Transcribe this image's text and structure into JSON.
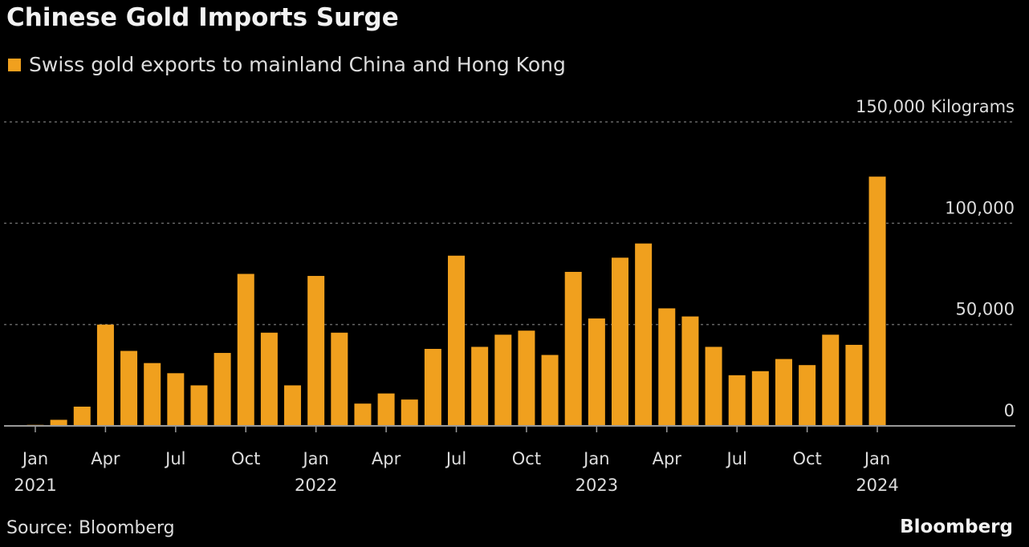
{
  "chart_data": {
    "type": "bar",
    "title": "Chinese Gold Imports Surge",
    "legend": [
      {
        "name": "Swiss gold exports to mainland China and Hong Kong",
        "color": "#f0a01e"
      }
    ],
    "unit_label": "Kilograms",
    "categories": [
      "Jan 2021",
      "Feb 2021",
      "Mar 2021",
      "Apr 2021",
      "May 2021",
      "Jun 2021",
      "Jul 2021",
      "Aug 2021",
      "Sep 2021",
      "Oct 2021",
      "Nov 2021",
      "Dec 2021",
      "Jan 2022",
      "Feb 2022",
      "Mar 2022",
      "Apr 2022",
      "May 2022",
      "Jun 2022",
      "Jul 2022",
      "Aug 2022",
      "Sep 2022",
      "Oct 2022",
      "Nov 2022",
      "Dec 2022",
      "Jan 2023",
      "Feb 2023",
      "Mar 2023",
      "Apr 2023",
      "May 2023",
      "Jun 2023",
      "Jul 2023",
      "Aug 2023",
      "Sep 2023",
      "Oct 2023",
      "Nov 2023",
      "Dec 2023",
      "Jan 2024"
    ],
    "series": [
      {
        "name": "Swiss gold exports to mainland China and Hong Kong",
        "values": [
          500,
          3000,
          9500,
          50000,
          37000,
          31000,
          26000,
          20000,
          36000,
          75000,
          46000,
          20000,
          74000,
          46000,
          11000,
          16000,
          13000,
          38000,
          84000,
          39000,
          45000,
          47000,
          35000,
          76000,
          53000,
          83000,
          90000,
          58000,
          54000,
          39000,
          25000,
          27000,
          33000,
          30000,
          45000,
          40000,
          123000
        ]
      }
    ],
    "ylim": [
      0,
      150000
    ],
    "yticks": [
      0,
      50000,
      100000,
      150000
    ],
    "ytick_labels": [
      "0",
      "50,000",
      "100,000",
      "150,000 Kilograms"
    ],
    "xtick_labels": [
      {
        "index": 0,
        "month": "Jan",
        "year": "2021"
      },
      {
        "index": 3,
        "month": "Apr",
        "year": ""
      },
      {
        "index": 6,
        "month": "Jul",
        "year": ""
      },
      {
        "index": 9,
        "month": "Oct",
        "year": ""
      },
      {
        "index": 12,
        "month": "Jan",
        "year": "2022"
      },
      {
        "index": 15,
        "month": "Apr",
        "year": ""
      },
      {
        "index": 18,
        "month": "Jul",
        "year": ""
      },
      {
        "index": 21,
        "month": "Oct",
        "year": ""
      },
      {
        "index": 24,
        "month": "Jan",
        "year": "2023"
      },
      {
        "index": 27,
        "month": "Apr",
        "year": ""
      },
      {
        "index": 30,
        "month": "Jul",
        "year": ""
      },
      {
        "index": 33,
        "month": "Oct",
        "year": ""
      },
      {
        "index": 36,
        "month": "Jan",
        "year": "2024"
      }
    ],
    "grid": true,
    "legend_position": "top-left",
    "bar_color": "#f0a01e"
  },
  "footer": {
    "source": "Source: Bloomberg",
    "brand": "Bloomberg"
  }
}
